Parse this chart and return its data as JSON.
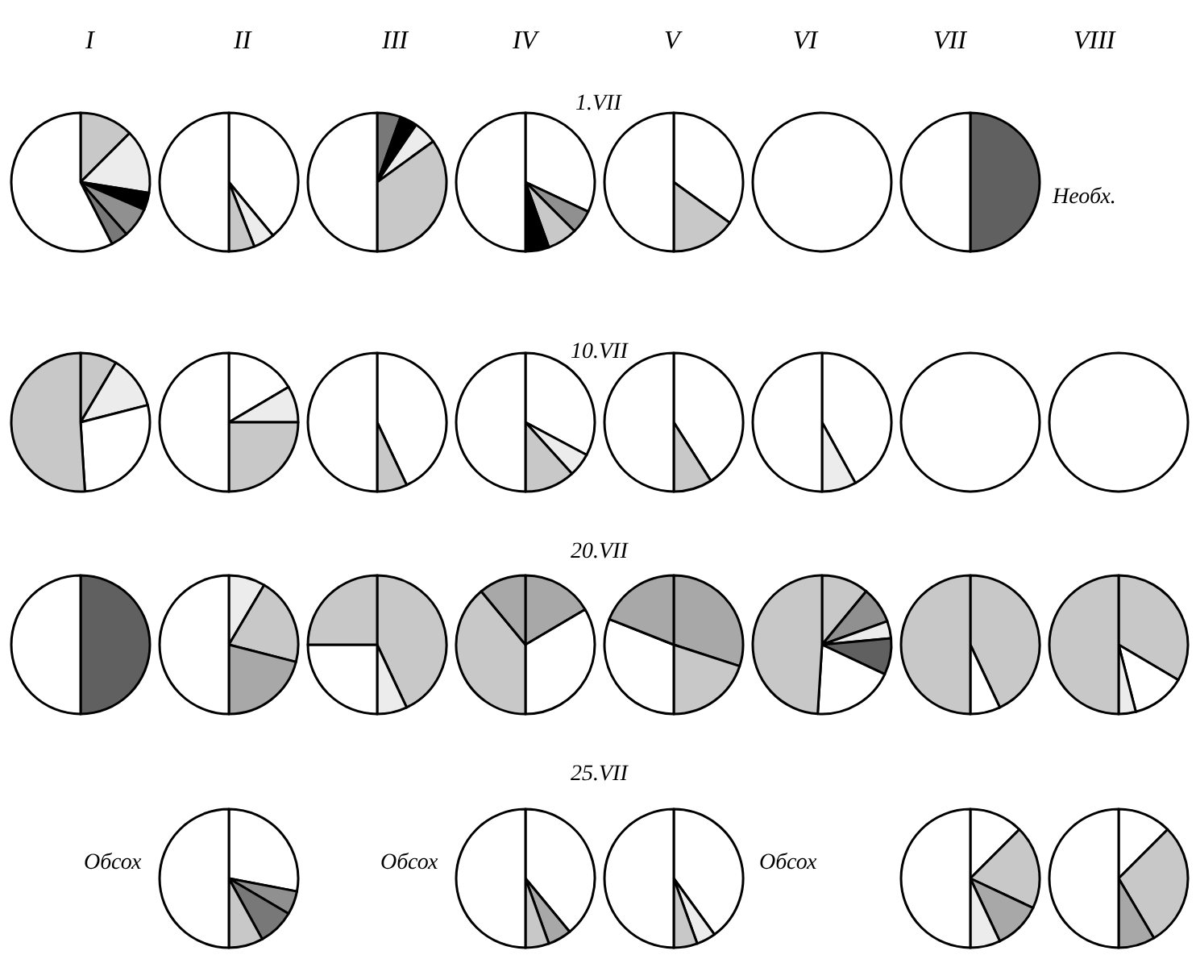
{
  "chart_data": [
    {
      "type": "other",
      "annotations": [
        "I",
        "II",
        "III",
        "IV",
        "V",
        "VI",
        "VII",
        "VIII"
      ]
    },
    {
      "type": "other",
      "title": "1.VII"
    },
    {
      "type": "pie",
      "categories": [
        null,
        null,
        null,
        null,
        null,
        null
      ],
      "values": [
        12.5,
        15,
        4,
        7,
        4,
        57.5
      ],
      "colors": [
        "#c8c8c8",
        "#ececec",
        "#000000",
        "#909090",
        "#787878",
        "#ffffff"
      ]
    },
    {
      "type": "pie",
      "categories": [
        null,
        null,
        null,
        null
      ],
      "values": [
        39,
        5,
        6,
        50
      ],
      "colors": [
        "#ffffff",
        "#ececec",
        "#c8c8c8",
        "#ffffff"
      ]
    },
    {
      "type": "pie",
      "categories": [
        null,
        null,
        null,
        null,
        null
      ],
      "values": [
        5.5,
        4,
        5.5,
        35,
        50
      ],
      "colors": [
        "#787878",
        "#000000",
        "#ececec",
        "#c8c8c8",
        "#ffffff"
      ]
    },
    {
      "type": "pie",
      "categories": [
        null,
        null,
        null,
        null,
        null
      ],
      "values": [
        32,
        5.5,
        7,
        5.5,
        50
      ],
      "colors": [
        "#ffffff",
        "#909090",
        "#c8c8c8",
        "#000000",
        "#ffffff"
      ]
    },
    {
      "type": "pie",
      "categories": [
        null,
        null,
        null
      ],
      "values": [
        35,
        15,
        50
      ],
      "colors": [
        "#ffffff",
        "#c8c8c8",
        "#ffffff"
      ]
    },
    {
      "type": "pie",
      "categories": [
        null
      ],
      "values": [
        100
      ],
      "colors": [
        "#ffffff"
      ]
    },
    {
      "type": "pie",
      "categories": [
        null,
        null
      ],
      "values": [
        50,
        50
      ],
      "colors": [
        "#606060",
        "#ffffff"
      ]
    },
    {
      "type": "other",
      "annotations": [
        "Необх."
      ]
    },
    {
      "type": "other",
      "title": "10.VII"
    },
    {
      "type": "pie",
      "categories": [
        null,
        null,
        null,
        null
      ],
      "values": [
        8.5,
        12.5,
        28,
        51
      ],
      "colors": [
        "#c8c8c8",
        "#ececec",
        "#ffffff",
        "#c8c8c8"
      ]
    },
    {
      "type": "pie",
      "categories": [
        null,
        null,
        null,
        null
      ],
      "values": [
        16.5,
        8.5,
        25,
        50
      ],
      "colors": [
        "#ffffff",
        "#ececec",
        "#c8c8c8",
        "#ffffff"
      ]
    },
    {
      "type": "pie",
      "categories": [
        null,
        null,
        null
      ],
      "values": [
        43,
        7,
        50
      ],
      "colors": [
        "#ffffff",
        "#c8c8c8",
        "#ffffff"
      ]
    },
    {
      "type": "pie",
      "categories": [
        null,
        null,
        null,
        null
      ],
      "values": [
        32.8,
        5.5,
        11.7,
        50
      ],
      "colors": [
        "#ffffff",
        "#ececec",
        "#c8c8c8",
        "#ffffff"
      ]
    },
    {
      "type": "pie",
      "categories": [
        null,
        null,
        null
      ],
      "values": [
        41,
        9,
        50
      ],
      "colors": [
        "#ffffff",
        "#c8c8c8",
        "#ffffff"
      ]
    },
    {
      "type": "pie",
      "categories": [
        null,
        null,
        null
      ],
      "values": [
        42,
        8,
        50
      ],
      "colors": [
        "#ffffff",
        "#ececec",
        "#ffffff"
      ]
    },
    {
      "type": "pie",
      "categories": [
        null
      ],
      "values": [
        100
      ],
      "colors": [
        "#ffffff"
      ]
    },
    {
      "type": "pie",
      "categories": [
        null
      ],
      "values": [
        100
      ],
      "colors": [
        "#ffffff"
      ]
    },
    {
      "type": "other",
      "title": "20.VII"
    },
    {
      "type": "pie",
      "categories": [
        null,
        null
      ],
      "values": [
        50,
        50
      ],
      "colors": [
        "#606060",
        "#ffffff"
      ]
    },
    {
      "type": "pie",
      "categories": [
        null,
        null,
        null,
        null
      ],
      "values": [
        8.5,
        20.5,
        21,
        50
      ],
      "colors": [
        "#ececec",
        "#c8c8c8",
        "#a8a8a8",
        "#ffffff"
      ]
    },
    {
      "type": "pie",
      "categories": [
        null,
        null,
        null,
        null
      ],
      "values": [
        43,
        7,
        25,
        25
      ],
      "colors": [
        "#c8c8c8",
        "#ececec",
        "#ffffff",
        "#c8c8c8"
      ]
    },
    {
      "type": "pie",
      "categories": [
        null,
        null,
        null,
        null
      ],
      "values": [
        16.5,
        33.5,
        39,
        11
      ],
      "colors": [
        "#a8a8a8",
        "#ffffff",
        "#c8c8c8",
        "#a8a8a8"
      ]
    },
    {
      "type": "pie",
      "categories": [
        null,
        null,
        null,
        null
      ],
      "values": [
        30,
        20,
        31,
        19
      ],
      "colors": [
        "#a8a8a8",
        "#c8c8c8",
        "#ffffff",
        "#a8a8a8"
      ]
    },
    {
      "type": "pie",
      "categories": [
        null,
        null,
        null,
        null,
        null,
        null
      ],
      "values": [
        11,
        8.5,
        4,
        8.5,
        19,
        49
      ],
      "colors": [
        "#c8c8c8",
        "#909090",
        "#ececec",
        "#606060",
        "#ffffff",
        "#c8c8c8"
      ]
    },
    {
      "type": "pie",
      "categories": [
        null,
        null,
        null
      ],
      "values": [
        43,
        7,
        50
      ],
      "colors": [
        "#c8c8c8",
        "#ffffff",
        "#c8c8c8"
      ]
    },
    {
      "type": "pie",
      "categories": [
        null,
        null,
        null,
        null
      ],
      "values": [
        33.5,
        12.5,
        4,
        50
      ],
      "colors": [
        "#c8c8c8",
        "#ffffff",
        "#ececec",
        "#c8c8c8"
      ]
    },
    {
      "type": "other",
      "title": "25.VII"
    },
    {
      "type": "other",
      "annotations": [
        "Обсох"
      ]
    },
    {
      "type": "pie",
      "categories": [
        null,
        null,
        null,
        null,
        null
      ],
      "values": [
        28,
        5.5,
        8.5,
        8,
        50
      ],
      "colors": [
        "#ffffff",
        "#909090",
        "#787878",
        "#c8c8c8",
        "#ffffff"
      ]
    },
    {
      "type": "other",
      "annotations": [
        "Обсох"
      ]
    },
    {
      "type": "pie",
      "categories": [
        null,
        null,
        null,
        null
      ],
      "values": [
        39,
        5.5,
        5.5,
        50
      ],
      "colors": [
        "#ffffff",
        "#a8a8a8",
        "#c8c8c8",
        "#ffffff"
      ]
    },
    {
      "type": "pie",
      "categories": [
        null,
        null,
        null,
        null
      ],
      "values": [
        40,
        4.5,
        5.5,
        50
      ],
      "colors": [
        "#ffffff",
        "#ececec",
        "#c8c8c8",
        "#ffffff"
      ]
    },
    {
      "type": "other",
      "annotations": [
        "Обсох"
      ]
    },
    {
      "type": "pie",
      "categories": [
        null,
        null,
        null,
        null,
        null
      ],
      "values": [
        12.5,
        19.5,
        11,
        7,
        50
      ],
      "colors": [
        "#ffffff",
        "#c8c8c8",
        "#a8a8a8",
        "#ececec",
        "#ffffff"
      ]
    },
    {
      "type": "pie",
      "categories": [
        null,
        null,
        null,
        null
      ],
      "values": [
        12.5,
        29,
        8.5,
        50
      ],
      "colors": [
        "#ffffff",
        "#c8c8c8",
        "#a8a8a8",
        "#ffffff"
      ]
    }
  ]
}
